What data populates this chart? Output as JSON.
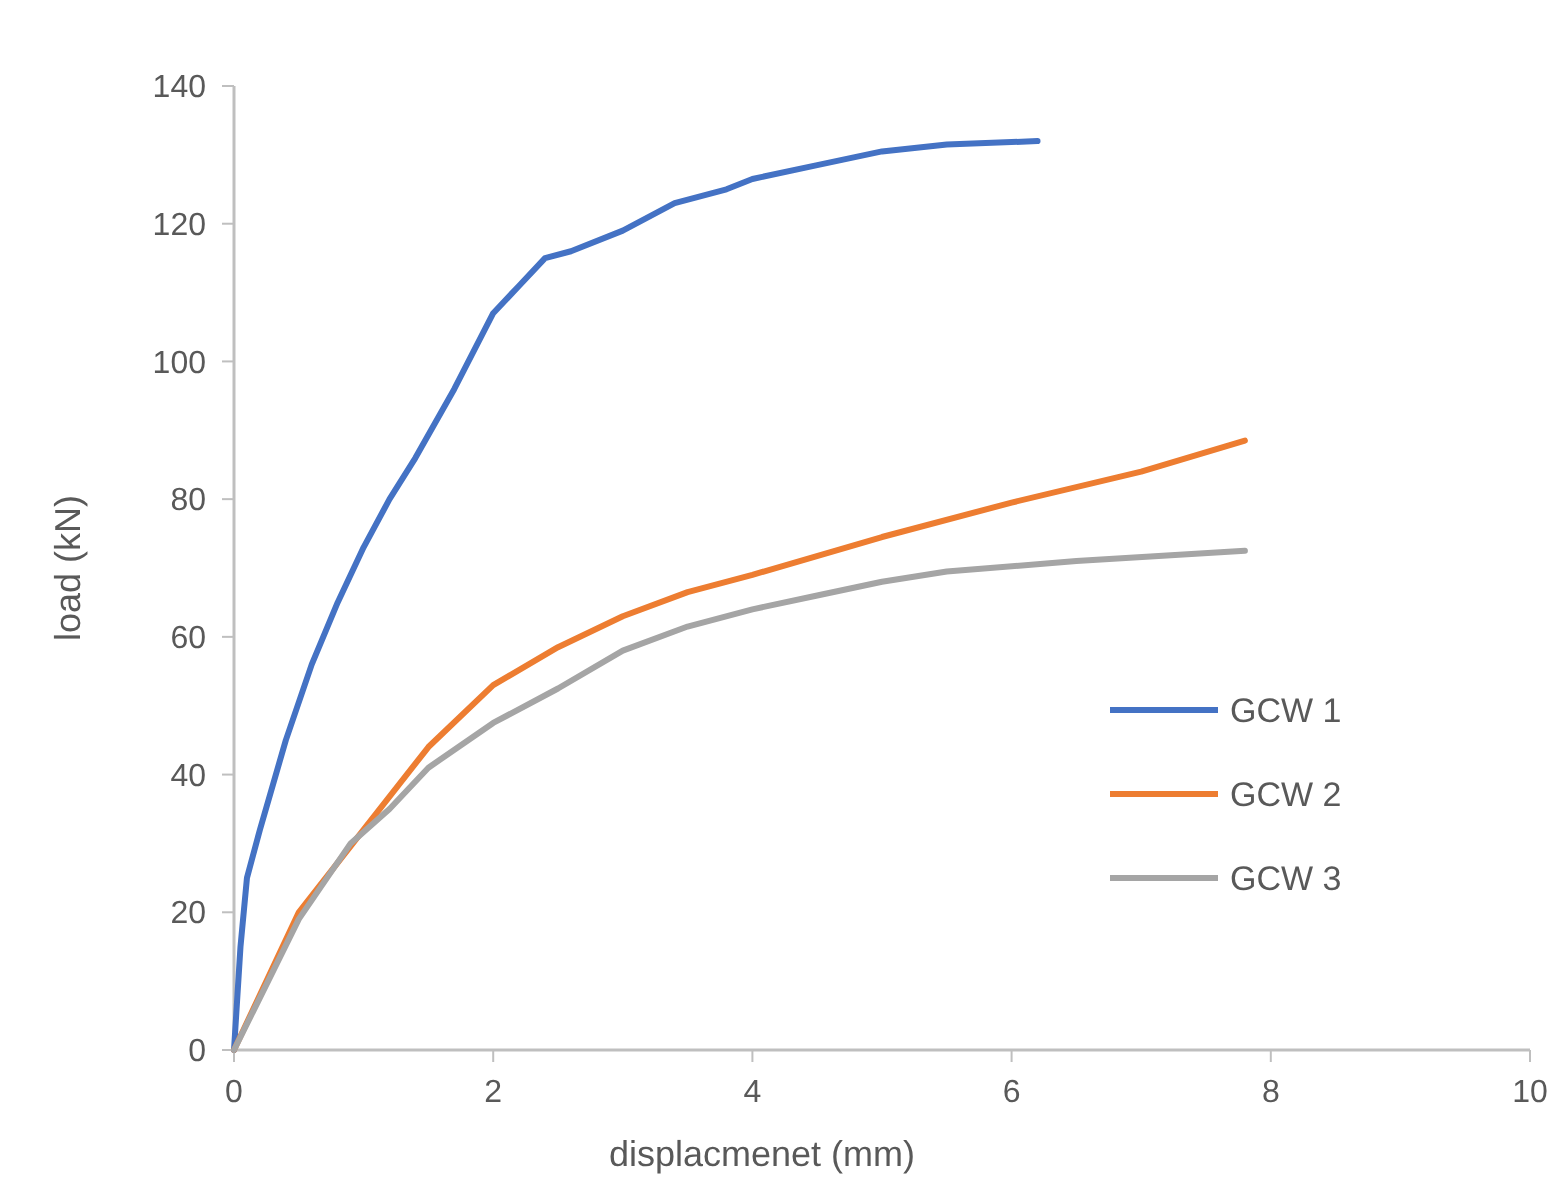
{
  "chart_data": {
    "type": "line",
    "xlabel": "displacmenet (mm)",
    "ylabel": "load (kN)",
    "xlim": [
      0,
      10
    ],
    "xticks": [
      0,
      2,
      4,
      6,
      8,
      10
    ],
    "ylim": [
      0,
      140
    ],
    "yticks": [
      0,
      20,
      40,
      60,
      80,
      100,
      120,
      140
    ],
    "grid": false,
    "legend": "right",
    "marker": "none",
    "line_style": "solid",
    "series": [
      {
        "name": "GCW 1",
        "color": "#4472c4",
        "x": [
          0,
          0.05,
          0.1,
          0.2,
          0.4,
          0.6,
          0.8,
          1,
          1.2,
          1.4,
          1.7,
          2,
          2.2,
          2.4,
          2.6,
          3,
          3.4,
          3.8,
          4,
          4.5,
          5,
          5.5,
          6.2
        ],
        "values": [
          0,
          15,
          25,
          32,
          45,
          56,
          65,
          73,
          80,
          86,
          96,
          107,
          111,
          115,
          116,
          119,
          123,
          125,
          126.5,
          128.5,
          130.5,
          131.5,
          132
        ]
      },
      {
        "name": "GCW 2",
        "color": "#ed7d31",
        "x": [
          0,
          0.5,
          1,
          1.5,
          2,
          2.5,
          3,
          3.5,
          4,
          5,
          6,
          7,
          7.8
        ],
        "values": [
          0,
          20,
          32,
          44,
          53,
          58.5,
          63,
          66.5,
          69,
          74.5,
          79.5,
          84,
          88.5
        ]
      },
      {
        "name": "GCW 3",
        "color": "#a5a5a5",
        "x": [
          0,
          0.5,
          0.9,
          1.2,
          1.5,
          2,
          2.5,
          3,
          3.5,
          4,
          4.5,
          5,
          5.5,
          6.5,
          7.8
        ],
        "values": [
          0,
          19,
          30,
          35,
          41,
          47.5,
          52.5,
          58,
          61.5,
          64,
          66,
          68,
          69.5,
          71,
          72.5
        ]
      }
    ]
  }
}
